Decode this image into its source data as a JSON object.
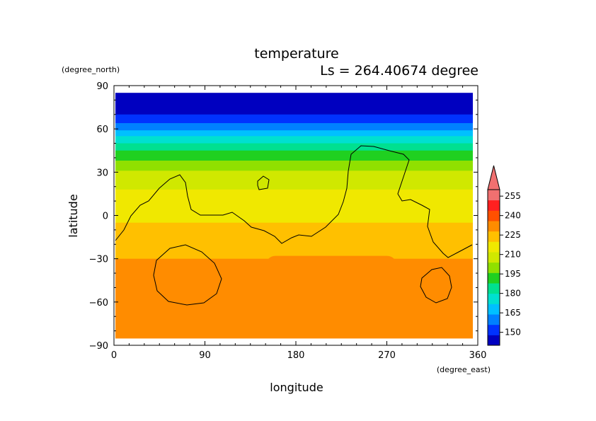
{
  "chart_data": {
    "type": "heatmap",
    "title": "temperature",
    "subtitle": "Ls = 264.40674 degree",
    "xlabel": "longitude",
    "ylabel": "latitude",
    "xunits": "(degree_east)",
    "yunits": "(degree_north)",
    "xlim": [
      0,
      360
    ],
    "ylim": [
      -90,
      90
    ],
    "xticks": [
      0,
      90,
      180,
      270,
      360
    ],
    "yticks": [
      90,
      60,
      30,
      0,
      -30,
      -60,
      -90
    ],
    "colorbar": {
      "levels": [
        150,
        165,
        180,
        195,
        210,
        225,
        240,
        255
      ],
      "min": 140,
      "max": 260,
      "extend": "max"
    },
    "field_zonal_mean": [
      {
        "lat": 85,
        "value": 142
      },
      {
        "lat": 70,
        "value": 148
      },
      {
        "lat": 62,
        "value": 158
      },
      {
        "lat": 55,
        "value": 172
      },
      {
        "lat": 45,
        "value": 188
      },
      {
        "lat": 35,
        "value": 200
      },
      {
        "lat": 25,
        "value": 210
      },
      {
        "lat": 10,
        "value": 214
      },
      {
        "lat": 0,
        "value": 218
      },
      {
        "lat": -15,
        "value": 224
      },
      {
        "lat": -30,
        "value": 228
      },
      {
        "lat": -45,
        "value": 232
      },
      {
        "lat": -60,
        "value": 232
      },
      {
        "lat": -75,
        "value": 230
      },
      {
        "lat": -85,
        "value": 230
      }
    ],
    "warm_region": {
      "lon": [
        150,
        280
      ],
      "lat": [
        -85,
        -28
      ],
      "value": 235
    }
  }
}
